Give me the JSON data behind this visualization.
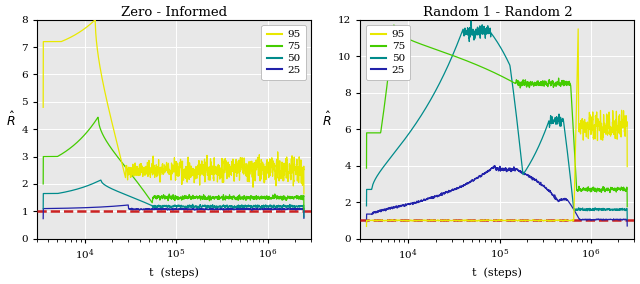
{
  "title_left": "Zero - Informed",
  "title_right": "Random 1 - Random 2",
  "xlabel": "t  (steps)",
  "ylabel": "$\\hat{R}$",
  "legend_labels": [
    "95",
    "75",
    "50",
    "25"
  ],
  "colors_left": [
    "#e8e800",
    "#44cc00",
    "#008b8b",
    "#2222aa"
  ],
  "colors_right": [
    "#e8e800",
    "#44cc00",
    "#008b8b",
    "#2222aa"
  ],
  "ylim_left": [
    0,
    8
  ],
  "ylim_right": [
    0,
    12
  ],
  "yticks_left": [
    0,
    1,
    2,
    3,
    4,
    5,
    6,
    7,
    8
  ],
  "yticks_right": [
    0,
    2,
    4,
    6,
    8,
    10,
    12
  ],
  "xlim": [
    3000,
    3000000
  ],
  "dashed_line_y": 1.0,
  "dashed_color": "#cc2222",
  "background_color": "#e8e8e8",
  "grid_color": "#ffffff",
  "seed": 42,
  "figsize": [
    6.4,
    2.84
  ],
  "dpi": 100
}
